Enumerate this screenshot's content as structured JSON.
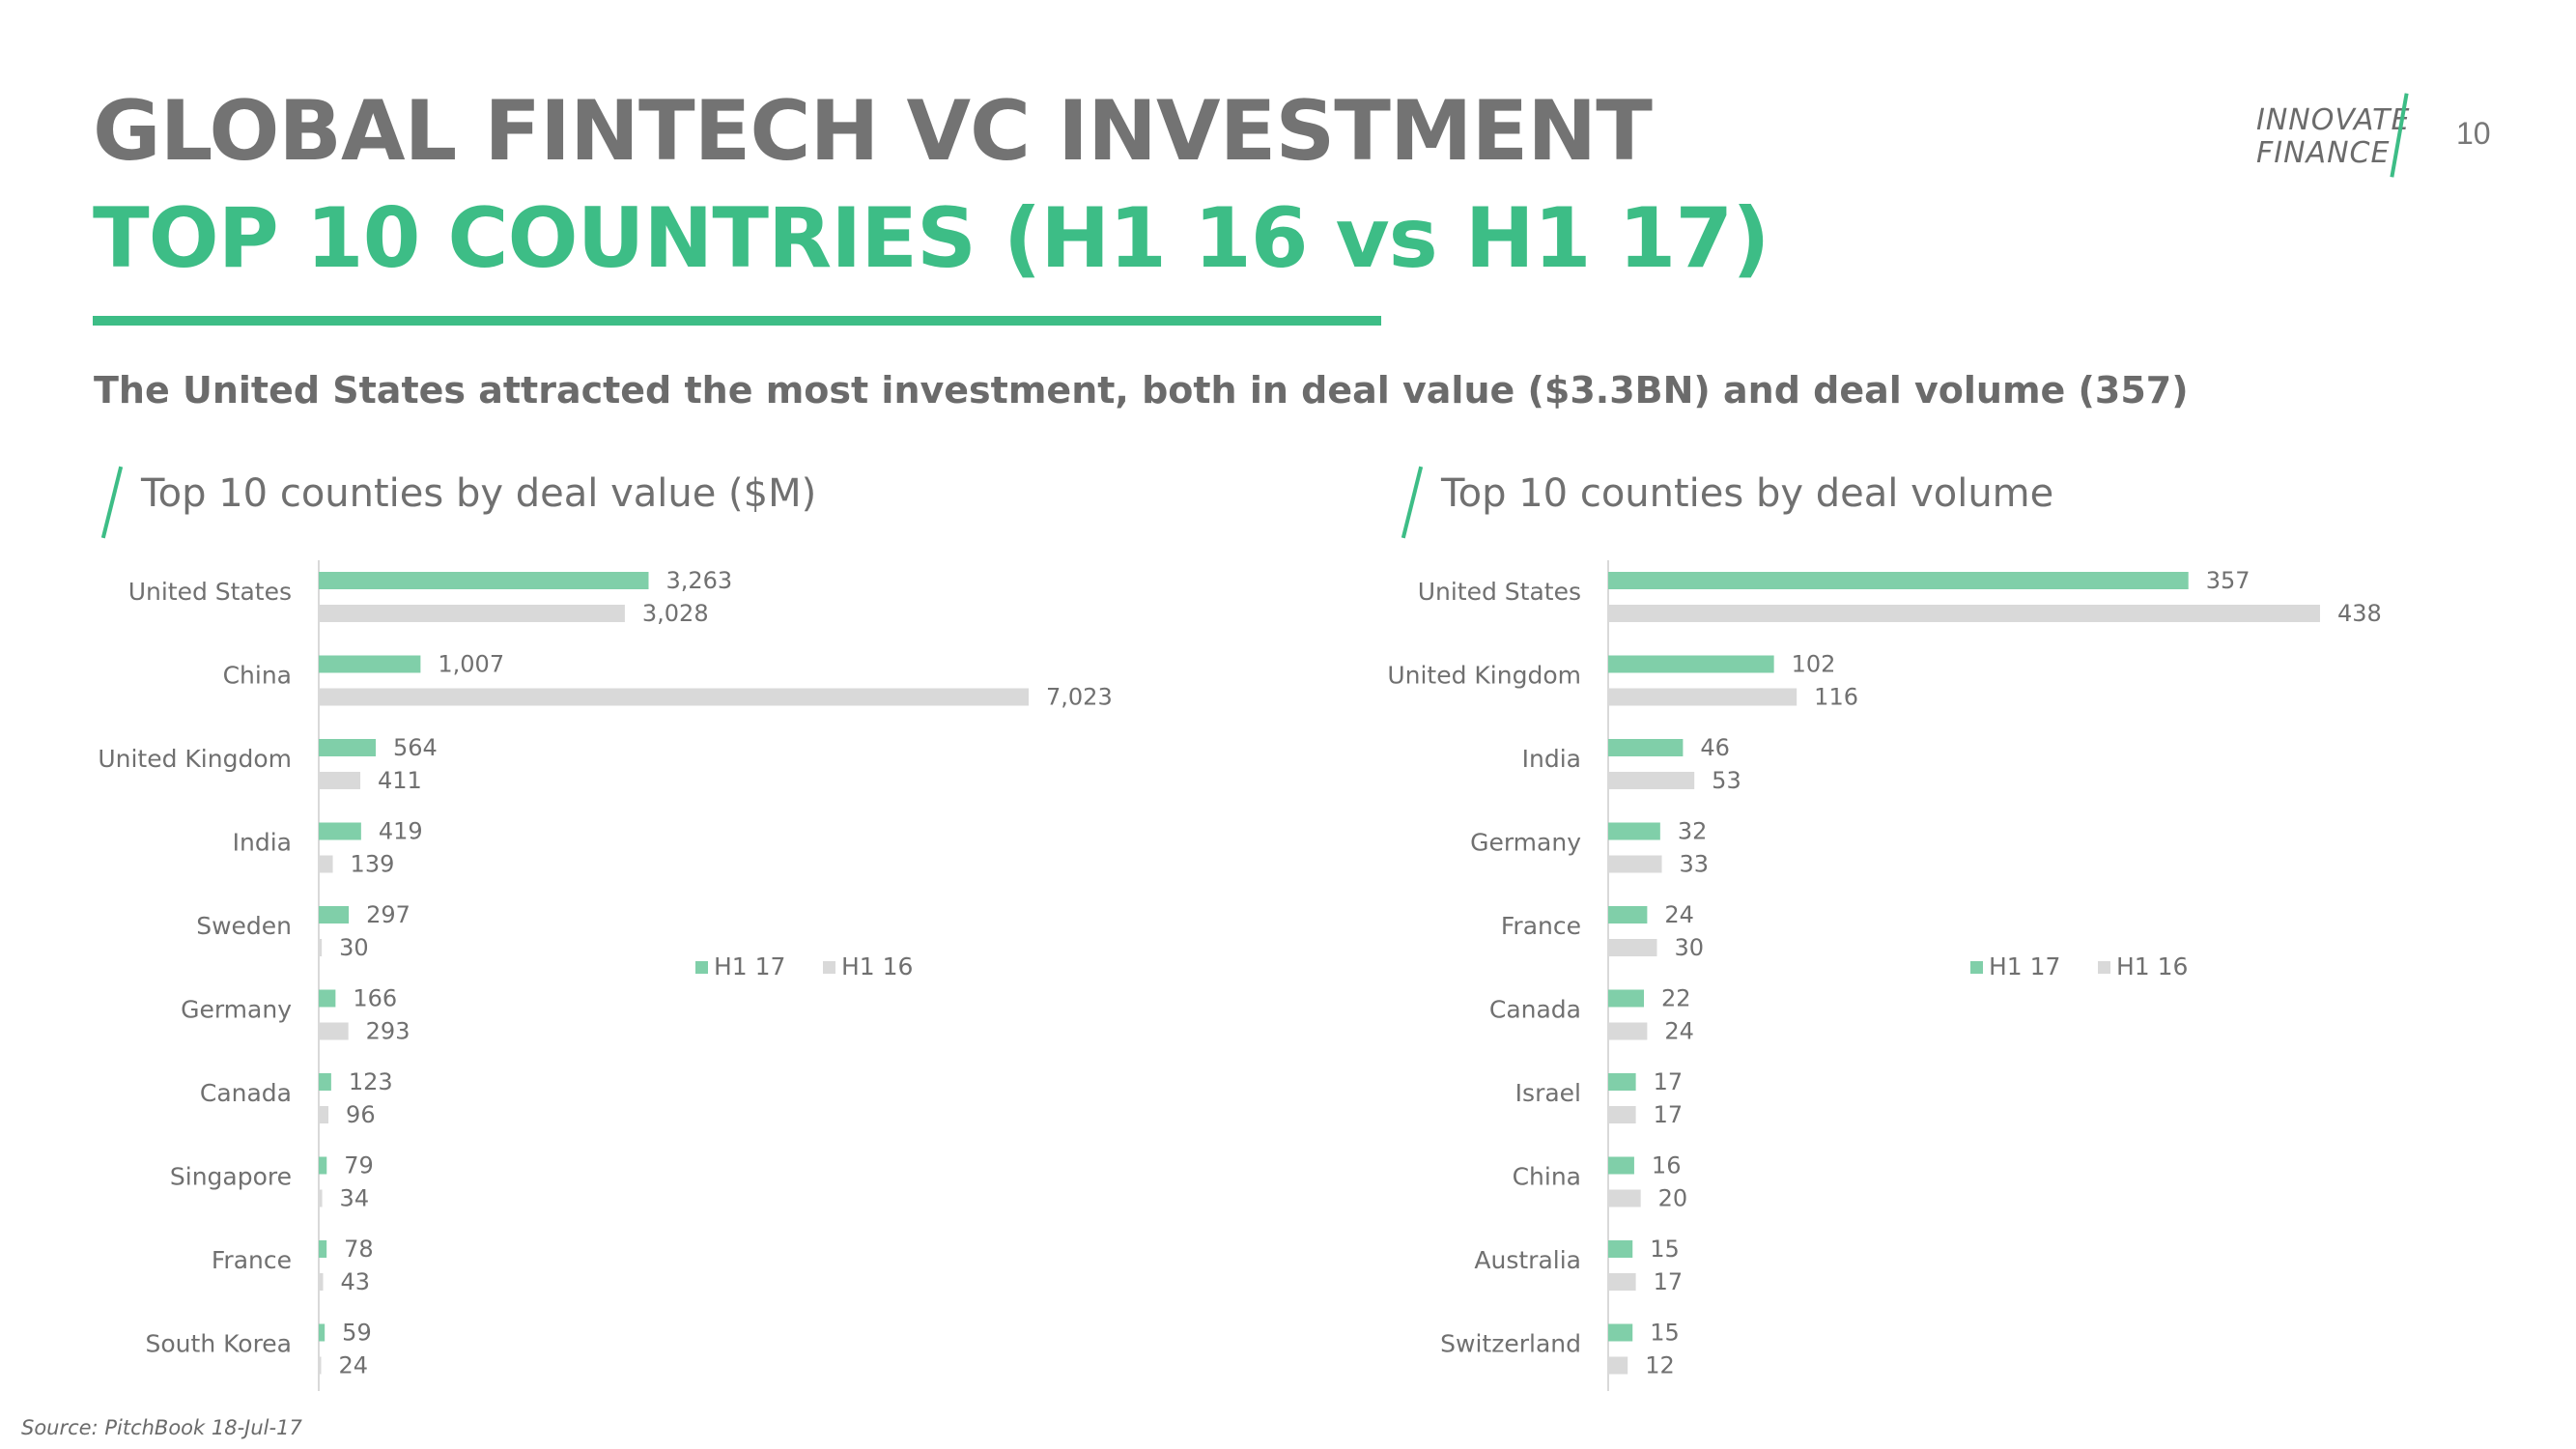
{
  "header": {
    "title_line1": "GLOBAL FINTECH VC INVESTMENT",
    "title_line2": "TOP 10 COUNTRIES (H1 16 vs H1 17)",
    "page_number": "10"
  },
  "logo": {
    "line1": "INNOVATE",
    "line2": "FINANCE"
  },
  "subtitle": "The United States attracted the most investment, both in deal value ($3.3BN) and deal volume (357)",
  "source": "Source: PitchBook 18-Jul-17",
  "colors": {
    "accent": "#3dbd86",
    "h1_17_bar": "#80cfa9",
    "h1_16_bar": "#d9d9d9"
  },
  "chart_data": [
    {
      "type": "bar",
      "orientation": "horizontal",
      "title": "Top 10 counties by deal value ($M)",
      "categories": [
        "United States",
        "China",
        "United Kingdom",
        "India",
        "Sweden",
        "Germany",
        "Canada",
        "Singapore",
        "France",
        "South Korea"
      ],
      "series": [
        {
          "name": "H1 17",
          "values": [
            3263,
            1007,
            564,
            419,
            297,
            166,
            123,
            79,
            78,
            59
          ],
          "labels": [
            "3,263",
            "1,007",
            "564",
            "419",
            "297",
            "166",
            "123",
            "79",
            "78",
            "59"
          ]
        },
        {
          "name": "H1 16",
          "values": [
            3028,
            7023,
            411,
            139,
            30,
            293,
            96,
            34,
            43,
            24
          ],
          "labels": [
            "3,028",
            "7,023",
            "411",
            "139",
            "30",
            "293",
            "96",
            "34",
            "43",
            "24"
          ]
        }
      ],
      "xlim": [
        0,
        7023
      ],
      "legend_position": "right"
    },
    {
      "type": "bar",
      "orientation": "horizontal",
      "title": "Top 10 counties by deal volume",
      "categories": [
        "United States",
        "United Kingdom",
        "India",
        "Germany",
        "France",
        "Canada",
        "Israel",
        "China",
        "Australia",
        "Switzerland"
      ],
      "series": [
        {
          "name": "H1 17",
          "values": [
            357,
            102,
            46,
            32,
            24,
            22,
            17,
            16,
            15,
            15
          ],
          "labels": [
            "357",
            "102",
            "46",
            "32",
            "24",
            "22",
            "17",
            "16",
            "15",
            "15"
          ]
        },
        {
          "name": "H1 16",
          "values": [
            438,
            116,
            53,
            33,
            30,
            24,
            17,
            20,
            17,
            12
          ],
          "labels": [
            "438",
            "116",
            "53",
            "33",
            "30",
            "24",
            "17",
            "20",
            "17",
            "12"
          ]
        }
      ],
      "xlim": [
        0,
        438
      ],
      "legend_position": "right"
    }
  ]
}
